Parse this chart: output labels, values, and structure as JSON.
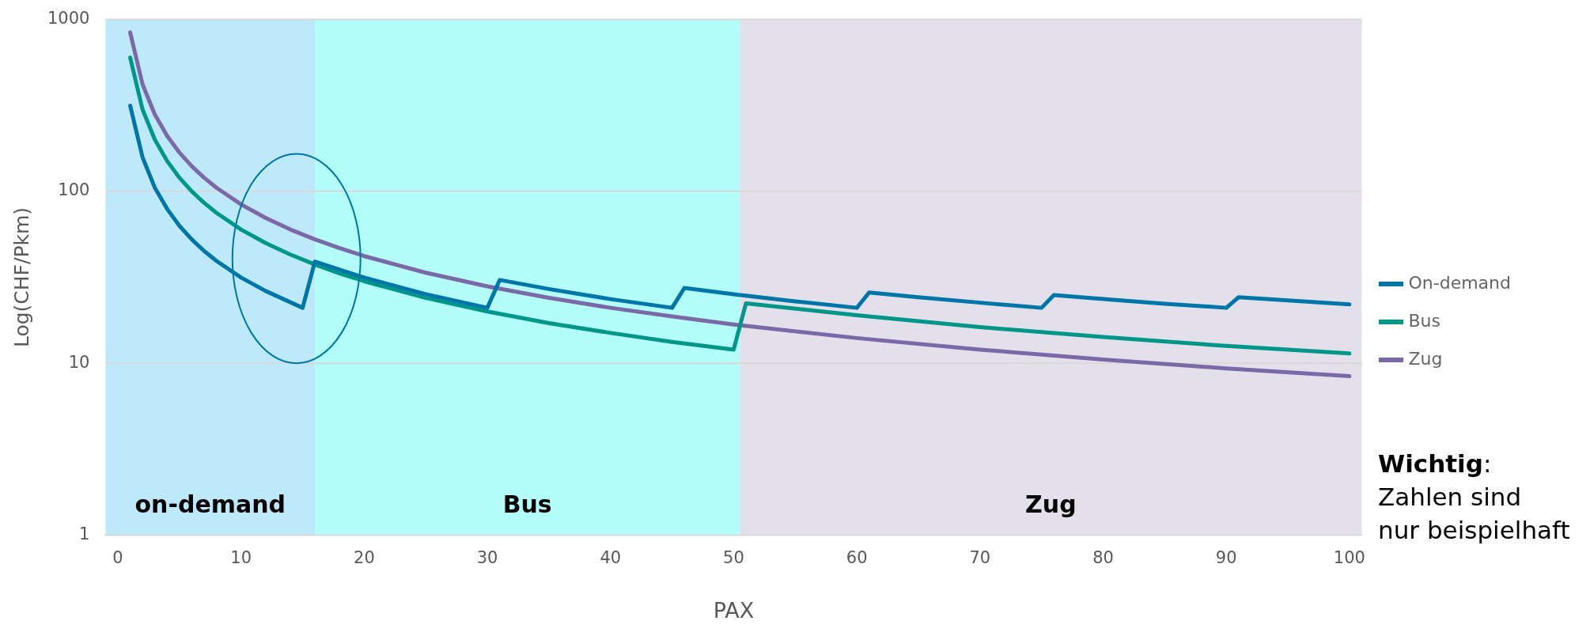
{
  "chart_data": {
    "type": "line",
    "xlabel": "PAX",
    "ylabel": "Log(CHF/Pkm)",
    "xlim": [
      -1,
      101
    ],
    "xticks": [
      0,
      10,
      20,
      30,
      40,
      50,
      60,
      70,
      80,
      90,
      100
    ],
    "ylim": [
      1,
      1000
    ],
    "yticks": [
      1,
      10,
      100,
      1000
    ],
    "log": "y",
    "grid": "y",
    "legend": "right",
    "marker": "none",
    "line_style": "solid",
    "series": [
      {
        "name": "On-demand",
        "color": "#0076a8",
        "x": [
          1,
          2,
          3,
          4,
          5,
          6,
          7,
          8,
          10,
          12,
          15,
          16,
          18,
          20,
          25,
          30,
          31,
          35,
          40,
          45,
          46,
          50,
          55,
          60,
          61,
          65,
          70,
          75,
          76,
          80,
          85,
          90,
          91,
          95,
          100
        ],
        "values": [
          315,
          158,
          105,
          79,
          63,
          52.5,
          45,
          39.4,
          31.5,
          26.3,
          21,
          39,
          35,
          31.5,
          25.2,
          21,
          30.5,
          27,
          23.6,
          21,
          27.4,
          25.2,
          22.9,
          21,
          25.8,
          24.2,
          22.5,
          21,
          24.9,
          23.6,
          22.2,
          21,
          24.2,
          23.2,
          22
        ]
      },
      {
        "name": "Bus",
        "color": "#009688",
        "x": [
          1,
          2,
          3,
          4,
          5,
          6,
          7,
          8,
          10,
          12,
          14,
          16,
          18,
          20,
          25,
          30,
          35,
          40,
          45,
          50,
          51,
          60,
          70,
          80,
          90,
          100
        ],
        "values": [
          600,
          300,
          200,
          150,
          120,
          100,
          85.7,
          75,
          60,
          50,
          42.9,
          37.5,
          33.3,
          30,
          24,
          20,
          17.1,
          15,
          13.3,
          12,
          22.3,
          19,
          16.2,
          14.2,
          12.6,
          11.4
        ]
      },
      {
        "name": "Zug",
        "color": "#7b68a6",
        "x": [
          1,
          2,
          3,
          4,
          5,
          6,
          7,
          8,
          10,
          12,
          14,
          16,
          18,
          20,
          25,
          30,
          35,
          40,
          45,
          50,
          60,
          70,
          80,
          90,
          100
        ],
        "values": [
          840,
          420,
          280,
          210,
          168,
          140,
          120,
          105,
          84,
          70,
          60,
          52.5,
          46.7,
          42,
          33.6,
          28,
          24,
          21,
          18.7,
          16.8,
          14,
          12,
          10.5,
          9.33,
          8.4
        ]
      }
    ],
    "bands": [
      {
        "axis": "x",
        "from": -1,
        "to": 16,
        "label": "on-demand",
        "color": "#bde9fb"
      },
      {
        "axis": "x",
        "from": 16,
        "to": 50.5,
        "label": "Bus",
        "color": "#b3fdfb"
      },
      {
        "axis": "x",
        "from": 50.5,
        "to": 101,
        "label": "Zug",
        "color": "#e3e0ec"
      }
    ],
    "annotations": [
      "Wichtig: Zahlen sind nur beispielhaft"
    ]
  }
}
